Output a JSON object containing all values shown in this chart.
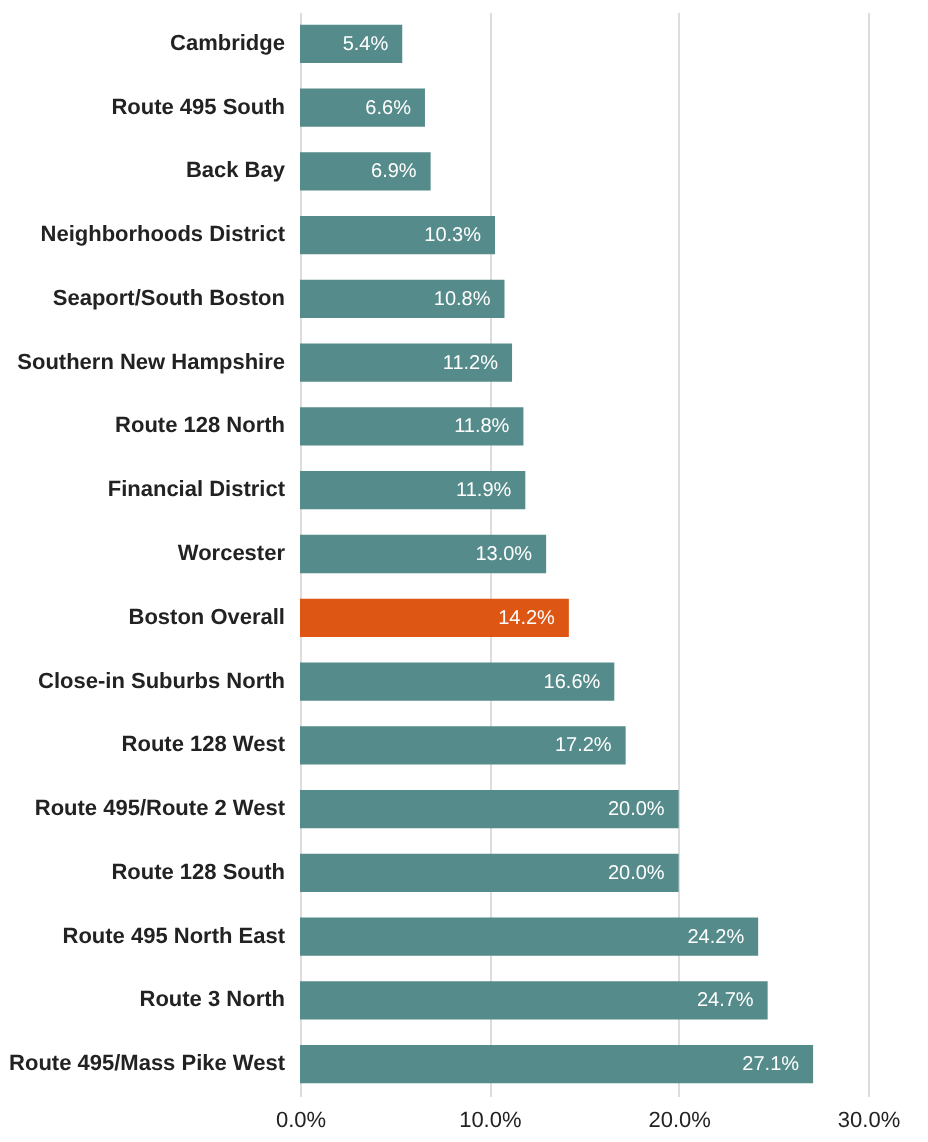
{
  "chart_data": {
    "type": "bar",
    "orientation": "horizontal",
    "categories": [
      "Cambridge",
      "Route 495 South",
      "Back Bay",
      "Neighborhoods District",
      "Seaport/South Boston",
      "Southern New Hampshire",
      "Route 128 North",
      "Financial District",
      "Worcester",
      "Boston Overall",
      "Close-in Suburbs North",
      "Route 128 West",
      "Route 495/Route 2 West",
      "Route 128 South",
      "Route 495 North East",
      "Route 3 North",
      "Route 495/Mass Pike West"
    ],
    "values": [
      5.4,
      6.6,
      6.9,
      10.3,
      10.8,
      11.2,
      11.8,
      11.9,
      13.0,
      14.2,
      16.6,
      17.2,
      20.0,
      20.0,
      24.2,
      24.7,
      27.1
    ],
    "colors": [
      "#558b8a",
      "#558b8a",
      "#558b8a",
      "#558b8a",
      "#558b8a",
      "#558b8a",
      "#558b8a",
      "#558b8a",
      "#558b8a",
      "#dd5614",
      "#558b8a",
      "#558b8a",
      "#558b8a",
      "#558b8a",
      "#558b8a",
      "#558b8a",
      "#558b8a"
    ],
    "value_labels": [
      "5.4%",
      "6.6%",
      "6.9%",
      "10.3%",
      "10.8%",
      "11.2%",
      "11.8%",
      "11.9%",
      "13.0%",
      "14.2%",
      "16.6%",
      "17.2%",
      "20.0%",
      "20.0%",
      "24.2%",
      "24.7%",
      "27.1%"
    ],
    "xlim": [
      0,
      30
    ],
    "xticks": [
      {
        "value": 0,
        "label": "0.0%"
      },
      {
        "value": 10,
        "label": "10.0%"
      },
      {
        "value": 20,
        "label": "20.0%"
      },
      {
        "value": 30,
        "label": "30.0%"
      }
    ],
    "grid": "x"
  }
}
